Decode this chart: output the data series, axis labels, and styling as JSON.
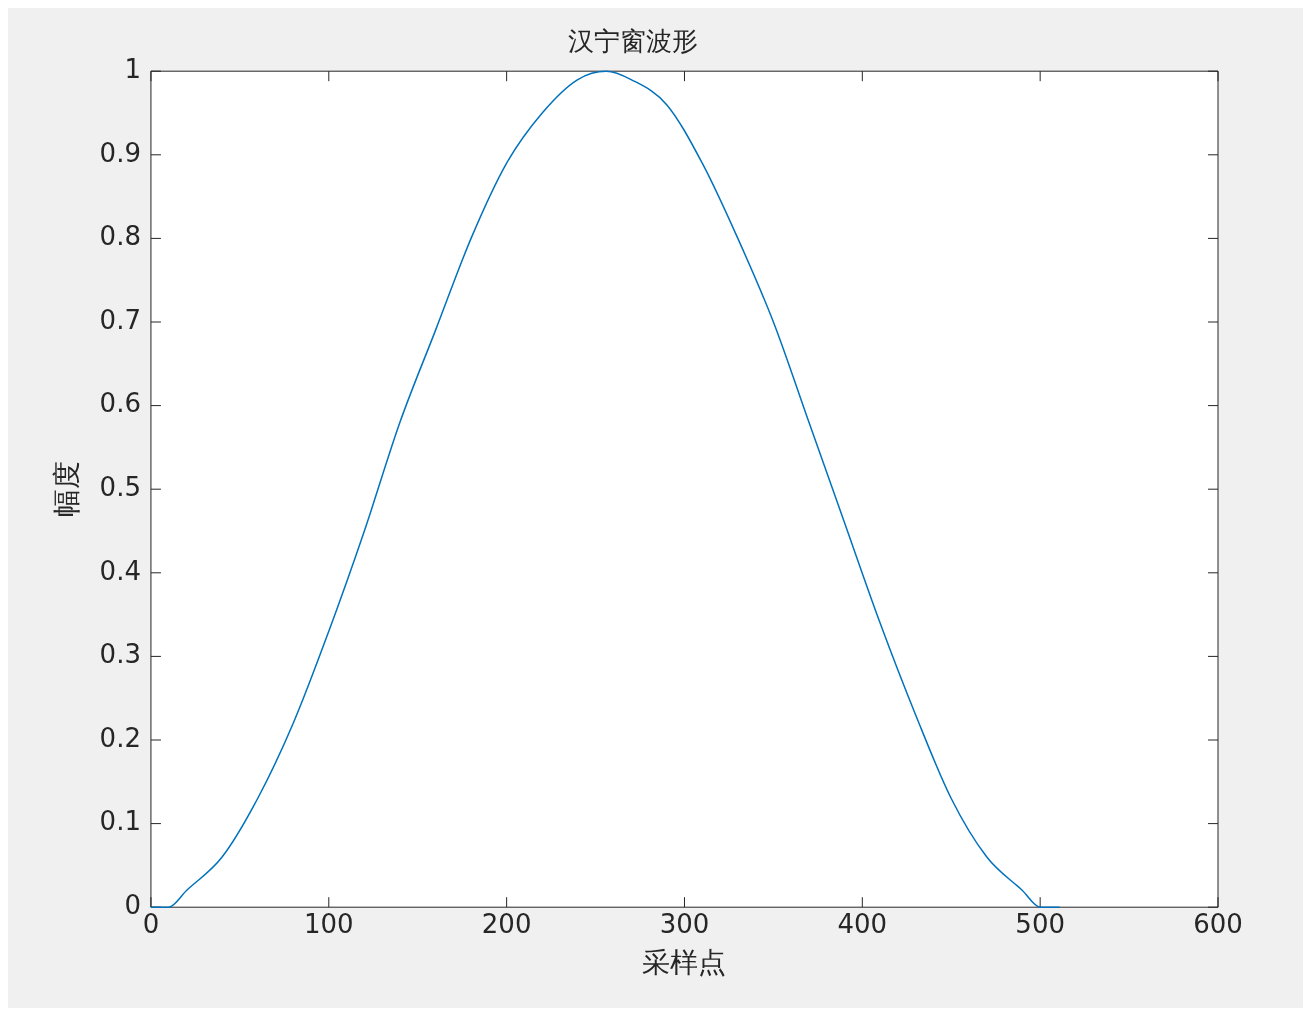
{
  "chart_data": {
    "type": "line",
    "title": "汉宁窗波形",
    "xlabel": "采样点",
    "ylabel": "幅度",
    "x": [
      0,
      10,
      20,
      40,
      60,
      80,
      100,
      120,
      140,
      160,
      180,
      200,
      220,
      240,
      256,
      270,
      290,
      310,
      330,
      350,
      370,
      390,
      410,
      430,
      450,
      470,
      490,
      500,
      511
    ],
    "series": [
      {
        "color": "#0072bd",
        "values": [
          0,
          0.0,
          0.02,
          0.06,
          0.13,
          0.22,
          0.33,
          0.45,
          0.58,
          0.69,
          0.8,
          0.89,
          0.95,
          0.99,
          1.0,
          0.99,
          0.96,
          0.89,
          0.8,
          0.7,
          0.58,
          0.46,
          0.34,
          0.23,
          0.13,
          0.06,
          0.02,
          0.0,
          0
        ]
      }
    ],
    "xlim": [
      0,
      600
    ],
    "xticks": [
      0,
      100,
      200,
      300,
      400,
      500,
      600
    ],
    "ylim": [
      0,
      1
    ],
    "yticks": [
      0,
      0.1,
      0.2,
      0.3,
      0.4,
      0.5,
      0.6,
      0.7,
      0.8,
      0.9,
      1
    ],
    "grid": false,
    "legend": false,
    "marker": "none",
    "line_style": "solid"
  }
}
